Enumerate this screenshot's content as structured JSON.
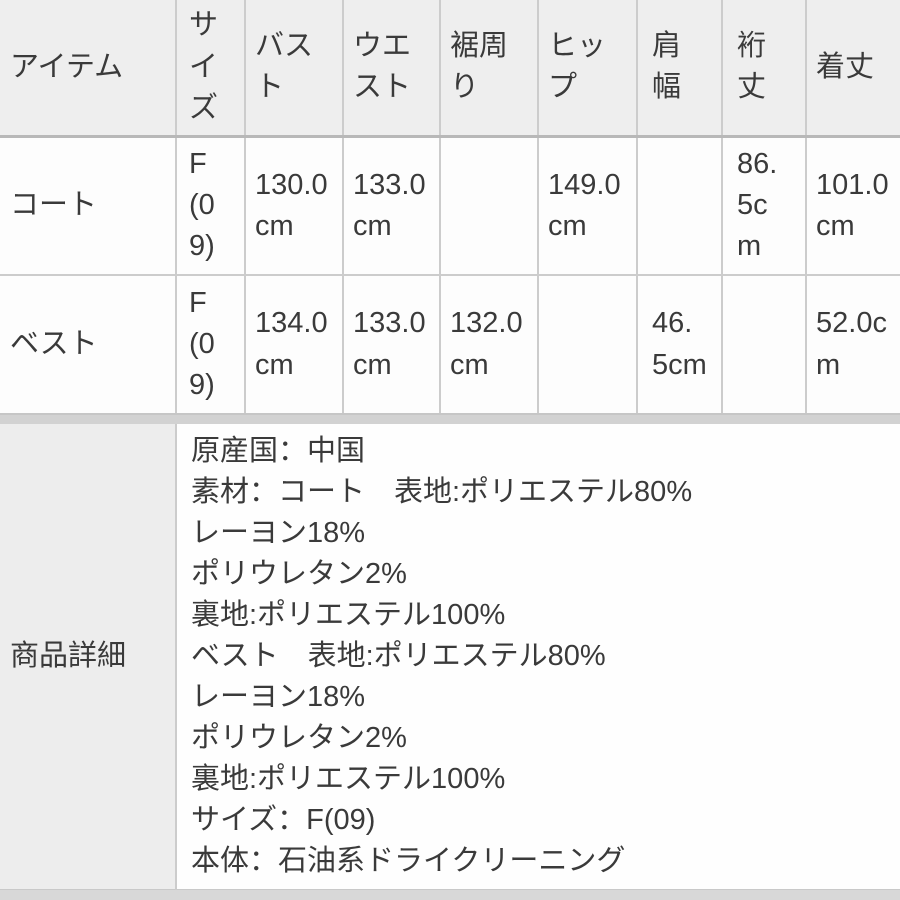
{
  "size_table": {
    "columns": [
      "アイテム",
      "サイズ",
      "バスト",
      "ウエスト",
      "裾周り",
      "ヒップ",
      "肩幅",
      "裄丈",
      "着丈"
    ],
    "rows": [
      {
        "cells": [
          "コート",
          "F(09)",
          "130.0cm",
          "133.0cm",
          "",
          "149.0cm",
          "",
          "86.5cm",
          "101.0cm"
        ]
      },
      {
        "cells": [
          "ベスト",
          "F(09)",
          "134.0cm",
          "133.0cm",
          "132.0cm",
          "",
          "46.5cm",
          "",
          "52.0cm"
        ]
      }
    ]
  },
  "details": {
    "label": "商品詳細",
    "lines": [
      "原産国：中国",
      "素材：コート　表地:ポリエステル80%",
      "レーヨン18%",
      "ポリウレタン2%",
      "裏地:ポリエステル100%",
      "ベスト　表地:ポリエステル80%",
      "レーヨン18%",
      "ポリウレタン2%",
      "裏地:ポリエステル100%",
      "サイズ：F(09)",
      "本体：石油系ドライクリーニング"
    ]
  },
  "colors": {
    "page_background": "#d2d2d2",
    "header_cell_background": "#eeeeee",
    "data_cell_background": "#fdfdfd",
    "grid_border": "#cccccc",
    "text": "#3a3a3a"
  }
}
